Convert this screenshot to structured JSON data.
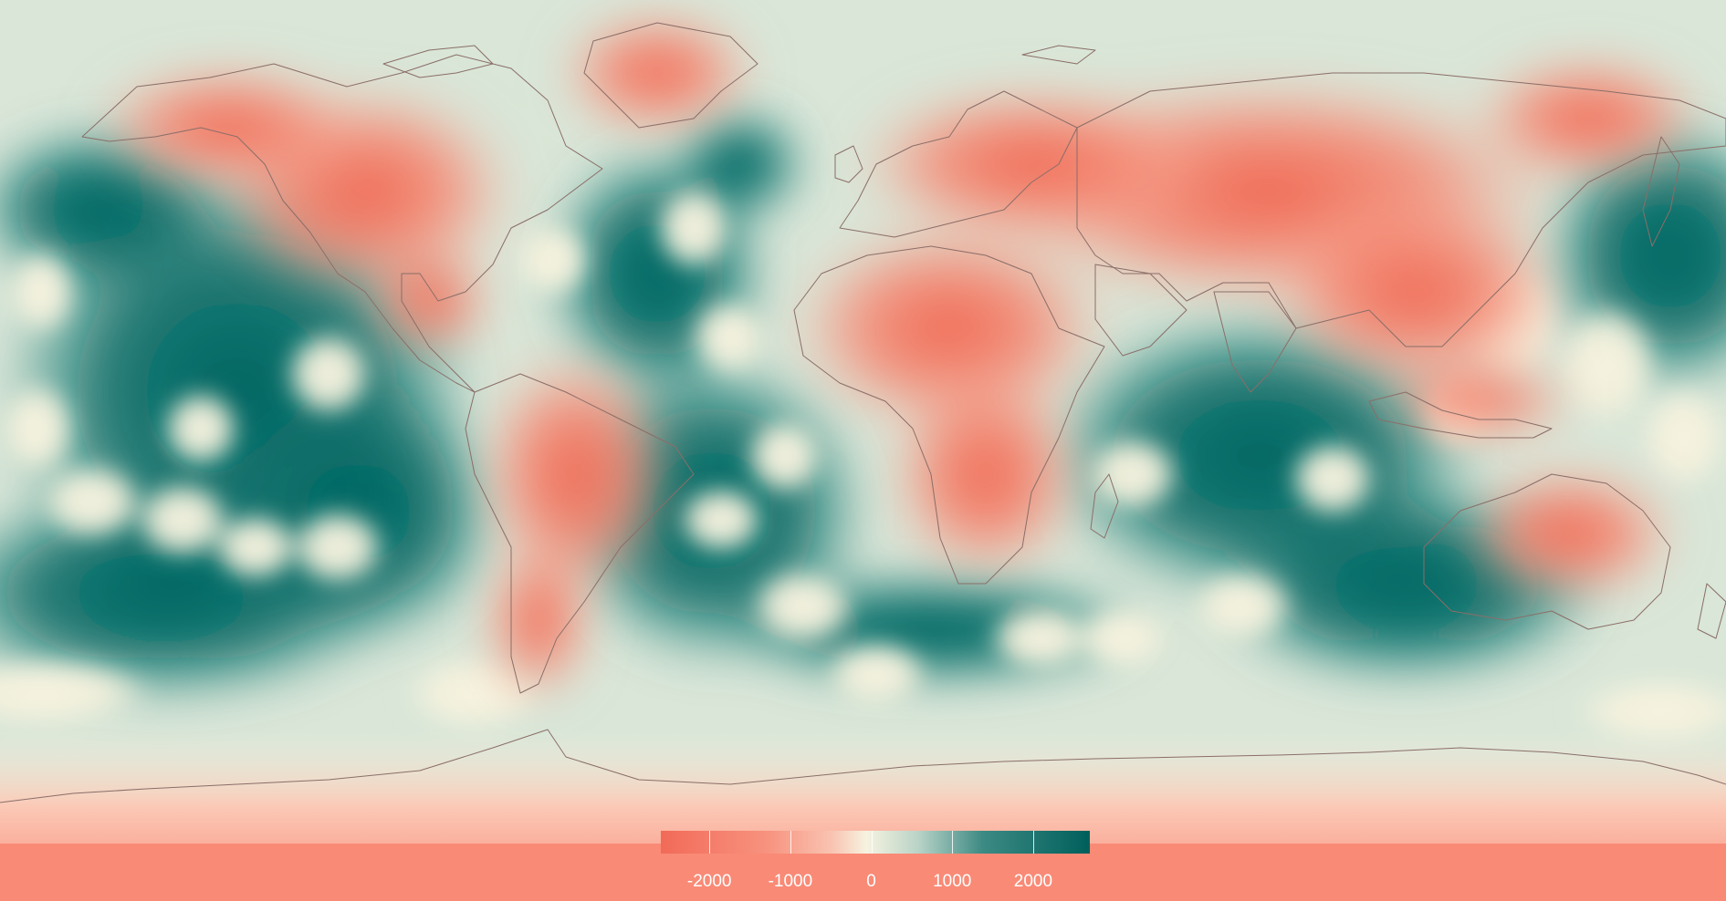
{
  "map": {
    "projection": "equirectangular",
    "land_outline_color": "#8a6e68",
    "background_color": "#f98a76"
  },
  "legend": {
    "ticks": [
      "-2000",
      "-1000",
      "0",
      "1000",
      "2000"
    ],
    "tick_values": [
      -2000,
      -1000,
      0,
      1000,
      2000
    ],
    "range": [
      -2600,
      2700
    ],
    "colors": {
      "negative": "#f26a58",
      "neutral": "#f6f3e0",
      "positive": "#005f5b"
    }
  }
}
